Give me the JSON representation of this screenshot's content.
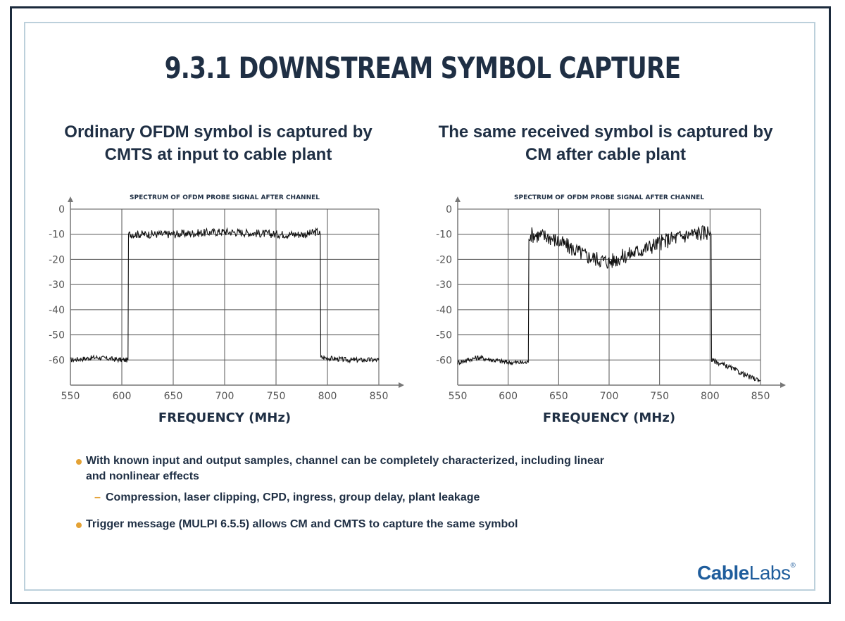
{
  "title": "9.3.1 DOWNSTREAM SYMBOL CAPTURE",
  "left_panel": {
    "subtitle_line1": "Ordinary OFDM symbol is captured by",
    "subtitle_line2": "CMTS at input to cable plant"
  },
  "right_panel": {
    "subtitle_line1": "The same received symbol is captured by",
    "subtitle_line2": "CM after cable plant"
  },
  "bullets": {
    "b1_line1": "With known input and output samples, channel can be completely characterized, including linear",
    "b1_line2": "and nonlinear effects",
    "b1_sub": "Compression, laser clipping, CPD, ingress, group delay, plant leakage",
    "b2": "Trigger message (MULPI 6.5.5) allows CM and CMTS to capture the same symbol"
  },
  "logo": {
    "bold": "Cable",
    "light": "Labs",
    "mark": "®"
  },
  "colors": {
    "text": "#1f2f44",
    "bullet": "#e4a235",
    "logo": "#1f5d9c",
    "frame": "#1b2a3c",
    "inner_frame": "#bcd0db"
  },
  "chart_data": [
    {
      "type": "line",
      "title": "SPECTRUM OF OFDM PROBE SIGNAL AFTER CHANNEL",
      "xlabel": "FREQUENCY (MHz)",
      "ylabel": "",
      "xlim": [
        550,
        850
      ],
      "ylim": [
        -70,
        0
      ],
      "xticks": [
        550,
        600,
        650,
        700,
        750,
        800,
        850
      ],
      "yticks": [
        0,
        -10,
        -20,
        -30,
        -40,
        -50,
        -60
      ],
      "grid": true,
      "series": [
        {
          "x": [
            550,
            575,
            600,
            606,
            606.5,
            650,
            700,
            750,
            780,
            790,
            793,
            793.5,
            820,
            850
          ],
          "y": [
            -60,
            -59,
            -60,
            -60,
            -10,
            -10,
            -9,
            -10,
            -10,
            -9,
            -10,
            -59,
            -60,
            -60
          ]
        }
      ]
    },
    {
      "type": "line",
      "title": "SPECTRUM OF OFDM PROBE SIGNAL AFTER CHANNEL",
      "xlabel": "FREQUENCY (MHz)",
      "ylabel": "",
      "xlim": [
        550,
        850
      ],
      "ylim": [
        -70,
        0
      ],
      "xticks": [
        550,
        600,
        650,
        700,
        750,
        800,
        850
      ],
      "yticks": [
        0,
        -10,
        -20,
        -30,
        -40,
        -50,
        -60
      ],
      "grid": true,
      "series": [
        {
          "x": [
            550,
            570,
            600,
            620,
            620.5,
            640,
            660,
            680,
            700,
            720,
            740,
            760,
            780,
            800,
            801,
            801.5,
            820,
            840,
            850
          ],
          "y": [
            -61,
            -59,
            -61,
            -61,
            -10,
            -11,
            -15,
            -19,
            -21,
            -18,
            -15,
            -12,
            -10,
            -9,
            -10,
            -60,
            -63,
            -67,
            -68
          ]
        }
      ]
    }
  ]
}
